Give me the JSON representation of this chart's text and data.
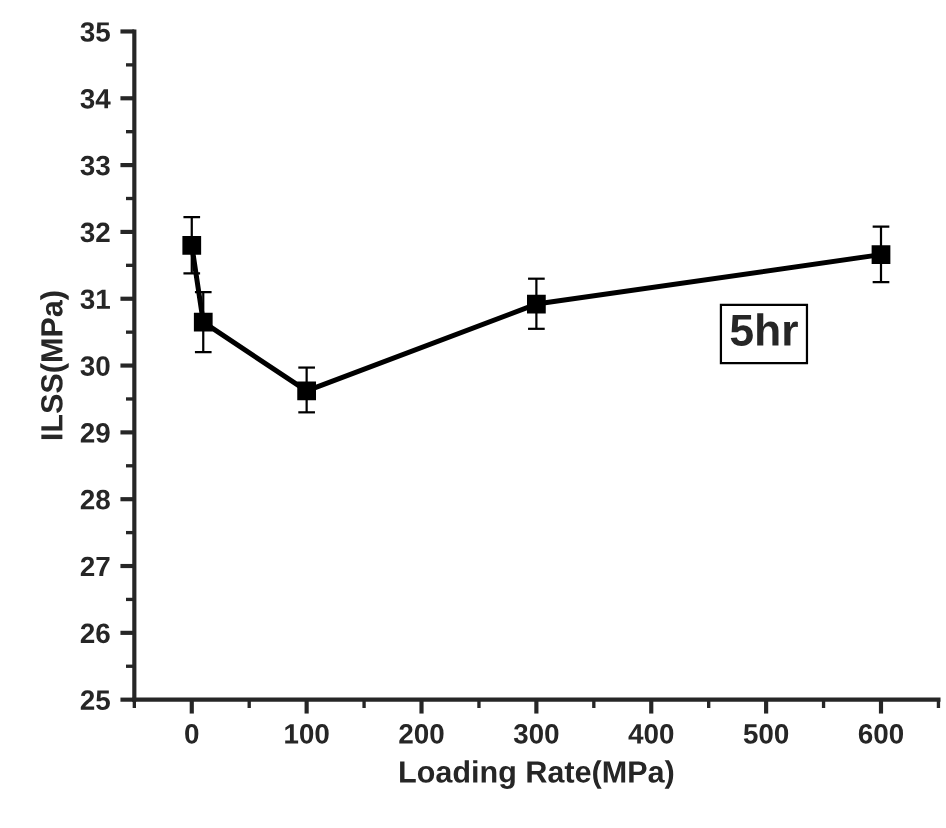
{
  "chart_data": {
    "type": "line",
    "xlabel": "Loading Rate(MPa)",
    "ylabel": "ILSS(MPa)",
    "x": [
      0,
      10,
      100,
      300,
      600
    ],
    "series": [
      {
        "color": "#000000",
        "values": [
          31.8,
          30.65,
          29.62,
          30.92,
          31.66
        ],
        "errors": [
          [
            31.38,
            32.22
          ],
          [
            30.2,
            31.1
          ],
          [
            29.3,
            29.97
          ],
          [
            30.55,
            31.3
          ],
          [
            31.25,
            32.08
          ]
        ]
      }
    ],
    "marker": "square",
    "line_style": "solid",
    "xlim": [
      -50,
      650
    ],
    "xticks": [
      0,
      100,
      200,
      300,
      400,
      500,
      600
    ],
    "ylim": [
      25,
      35
    ],
    "yticks": [
      25,
      26,
      27,
      28,
      29,
      30,
      31,
      32,
      33,
      34,
      35
    ],
    "annotations": [
      "5hr"
    ],
    "grid": false,
    "legend": false
  }
}
